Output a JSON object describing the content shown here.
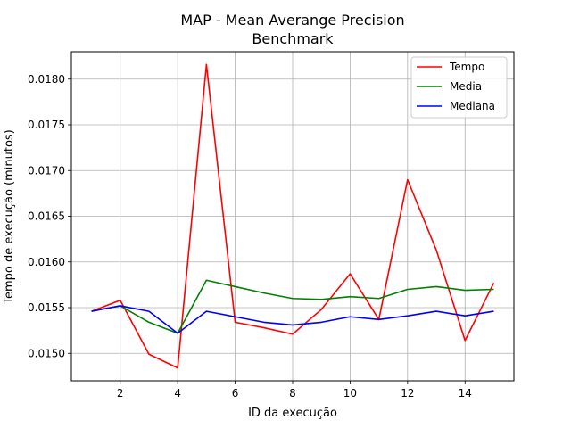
{
  "chart_data": {
    "type": "line",
    "title": [
      "MAP - Mean Averange Precision",
      "Benchmark"
    ],
    "xlabel": "ID da execução",
    "ylabel": "Tempo de execução (minutos)",
    "xlim": [
      0.3,
      15.7
    ],
    "ylim": [
      0.0147,
      0.0183
    ],
    "xticks": [
      2,
      4,
      6,
      8,
      10,
      12,
      14
    ],
    "yticks": [
      0.015,
      0.0155,
      0.016,
      0.0165,
      0.017,
      0.0175,
      0.018
    ],
    "xtick_labels": [
      "2",
      "4",
      "6",
      "8",
      "10",
      "12",
      "14"
    ],
    "ytick_labels": [
      "0.0150",
      "0.0155",
      "0.0160",
      "0.0165",
      "0.0170",
      "0.0175",
      "0.0180"
    ],
    "grid": true,
    "legend_position": "top-right",
    "x": [
      1,
      2,
      3,
      4,
      5,
      6,
      7,
      8,
      9,
      10,
      11,
      12,
      13,
      14,
      15
    ],
    "series": [
      {
        "name": "Tempo",
        "color": "#ff0000",
        "values": [
          0.01546,
          0.01558,
          0.01499,
          0.01484,
          0.01816,
          0.01534,
          0.01528,
          0.01521,
          0.01548,
          0.01587,
          0.01537,
          0.0169,
          0.01613,
          0.01514,
          0.01577
        ]
      },
      {
        "name": "Media",
        "color": "#008000",
        "values": [
          0.01546,
          0.01552,
          0.01534,
          0.01522,
          0.0158,
          0.01573,
          0.01566,
          0.0156,
          0.01559,
          0.01562,
          0.0156,
          0.0157,
          0.01573,
          0.01569,
          0.0157
        ]
      },
      {
        "name": "Mediana",
        "color": "#0000ff",
        "values": [
          0.01546,
          0.01552,
          0.01546,
          0.01522,
          0.01546,
          0.0154,
          0.01534,
          0.01531,
          0.01534,
          0.0154,
          0.01537,
          0.01541,
          0.01546,
          0.01541,
          0.01546
        ]
      }
    ]
  }
}
